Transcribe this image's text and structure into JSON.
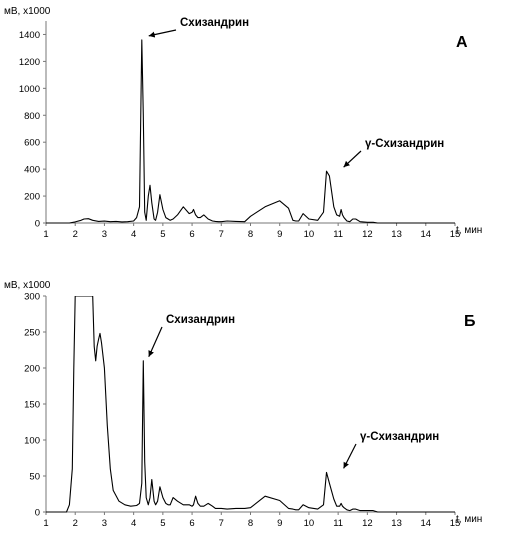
{
  "chart_data": [
    {
      "type": "line",
      "panel_label": "А",
      "ylabel": "мВ, x1000",
      "xlabel": "t, мин",
      "xlim": [
        1,
        15
      ],
      "ylim": [
        0,
        1500
      ],
      "x_ticks": [
        1,
        2,
        3,
        4,
        5,
        6,
        7,
        8,
        9,
        10,
        11,
        12,
        13,
        14,
        15
      ],
      "y_ticks": [
        0,
        200,
        400,
        600,
        800,
        1000,
        1200,
        1400
      ],
      "grid": false,
      "series": [
        {
          "x": [
            1.0,
            1.8,
            2.0,
            2.2,
            2.3,
            2.45,
            2.6,
            2.8,
            3.0,
            3.2,
            3.4,
            3.6,
            3.8,
            4.0,
            4.1,
            4.2,
            4.28,
            4.33,
            4.38,
            4.43,
            4.5,
            4.56,
            4.62,
            4.7,
            4.75,
            4.82,
            4.9,
            5.0,
            5.1,
            5.18,
            5.25,
            5.35,
            5.5,
            5.7,
            5.9,
            6.0,
            6.05,
            6.12,
            6.2,
            6.28,
            6.4,
            6.55,
            6.7,
            6.8,
            6.9,
            7.0,
            7.2,
            7.5,
            7.8,
            8.0,
            8.5,
            9.0,
            9.3,
            9.45,
            9.55,
            9.65,
            9.8,
            10.0,
            10.3,
            10.5,
            10.6,
            10.7,
            10.85,
            10.95,
            11.05,
            11.1,
            11.15,
            11.2,
            11.3,
            11.4,
            11.5,
            11.6,
            11.75,
            12.0,
            12.2,
            12.35,
            12.5,
            12.7,
            13.0,
            14.0,
            15.0
          ],
          "y": [
            0,
            0,
            8,
            20,
            30,
            32,
            20,
            12,
            14,
            10,
            12,
            8,
            10,
            15,
            40,
            120,
            1360,
            800,
            80,
            20,
            200,
            280,
            150,
            30,
            20,
            80,
            210,
            100,
            40,
            30,
            20,
            30,
            60,
            120,
            70,
            80,
            100,
            60,
            40,
            40,
            60,
            30,
            15,
            12,
            10,
            10,
            15,
            12,
            10,
            50,
            120,
            165,
            110,
            20,
            15,
            15,
            70,
            30,
            20,
            80,
            385,
            350,
            120,
            60,
            50,
            100,
            60,
            40,
            15,
            10,
            30,
            30,
            10,
            5,
            5,
            0,
            0,
            0,
            0,
            0,
            0
          ]
        }
      ],
      "annotations": [
        {
          "text": "Схизандрин",
          "x": 4.38,
          "y": 1360
        },
        {
          "text": "γ-Схизандрин",
          "x": 11.05,
          "y": 385
        }
      ]
    },
    {
      "type": "line",
      "panel_label": "Б",
      "ylabel": "мВ, x1000",
      "xlabel": "t, мин",
      "xlim": [
        1,
        15
      ],
      "ylim": [
        0,
        300
      ],
      "x_ticks": [
        1,
        2,
        3,
        4,
        5,
        6,
        7,
        8,
        9,
        10,
        11,
        12,
        13,
        14,
        15
      ],
      "y_ticks": [
        0,
        50,
        100,
        150,
        200,
        250,
        300
      ],
      "grid": false,
      "series": [
        {
          "x": [
            1.0,
            1.7,
            1.8,
            1.9,
            1.95,
            2.0,
            2.1,
            2.3,
            2.5,
            2.6,
            2.65,
            2.7,
            2.75,
            2.8,
            2.85,
            2.9,
            3.0,
            3.1,
            3.2,
            3.3,
            3.5,
            3.7,
            3.9,
            4.1,
            4.2,
            4.28,
            4.33,
            4.38,
            4.43,
            4.5,
            4.56,
            4.62,
            4.7,
            4.75,
            4.82,
            4.9,
            5.0,
            5.1,
            5.18,
            5.25,
            5.35,
            5.5,
            5.7,
            5.9,
            6.0,
            6.05,
            6.12,
            6.2,
            6.28,
            6.4,
            6.55,
            6.7,
            6.8,
            6.9,
            7.0,
            7.2,
            7.5,
            7.8,
            8.0,
            8.5,
            9.0,
            9.3,
            9.45,
            9.55,
            9.65,
            9.8,
            10.0,
            10.3,
            10.5,
            10.6,
            10.7,
            10.85,
            10.95,
            11.05,
            11.1,
            11.15,
            11.2,
            11.3,
            11.4,
            11.5,
            11.6,
            11.75,
            12.0,
            12.2,
            12.35,
            12.5,
            12.7,
            13.0,
            14.0,
            15.0
          ],
          "y": [
            0,
            0,
            10,
            60,
            200,
            300,
            300,
            300,
            300,
            300,
            230,
            210,
            230,
            240,
            248,
            235,
            200,
            120,
            60,
            30,
            15,
            10,
            8,
            9,
            12,
            40,
            210,
            70,
            20,
            10,
            20,
            45,
            15,
            10,
            15,
            35,
            20,
            12,
            10,
            10,
            20,
            15,
            10,
            10,
            8,
            10,
            22,
            12,
            8,
            8,
            12,
            8,
            5,
            5,
            5,
            4,
            5,
            5,
            6,
            22,
            16,
            5,
            4,
            3,
            3,
            10,
            6,
            4,
            10,
            55,
            40,
            18,
            8,
            8,
            12,
            8,
            6,
            3,
            2,
            4,
            4,
            2,
            2,
            2,
            0,
            0,
            0,
            0,
            0,
            0
          ]
        }
      ],
      "annotations": [
        {
          "text": "Схизандрин",
          "x": 4.38,
          "y": 210
        },
        {
          "text": "γ-Схизандрин",
          "x": 11.05,
          "y": 55
        }
      ]
    }
  ]
}
